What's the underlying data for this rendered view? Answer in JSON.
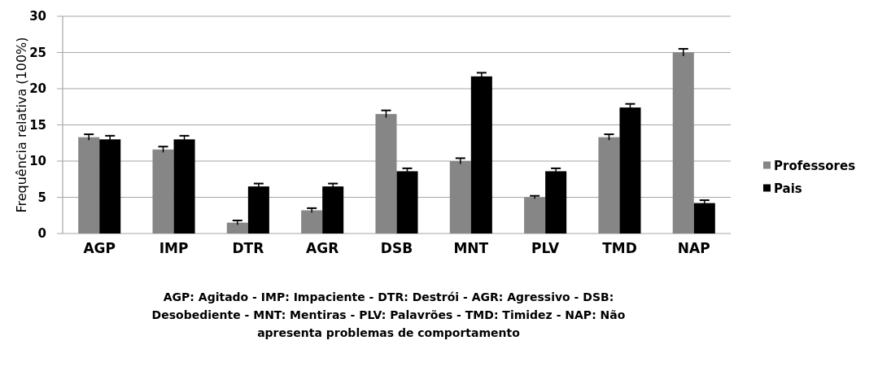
{
  "chart_data": {
    "type": "bar",
    "ylabel": "Frequência relativa (100%)",
    "categories": [
      "AGP",
      "IMP",
      "DTR",
      "AGR",
      "DSB",
      "MNT",
      "PLV",
      "TMD",
      "NAP"
    ],
    "series": [
      {
        "name": "Professores",
        "color": "#868686",
        "values": [
          13.3,
          11.6,
          1.5,
          3.2,
          16.5,
          10,
          5,
          13.3,
          25
        ],
        "errors": [
          0.4,
          0.4,
          0.3,
          0.3,
          0.5,
          0.4,
          0.2,
          0.4,
          0.5
        ]
      },
      {
        "name": "Pais",
        "color": "#000000",
        "values": [
          13,
          13,
          6.5,
          6.5,
          8.6,
          21.7,
          8.6,
          17.4,
          4.2
        ],
        "errors": [
          0.5,
          0.5,
          0.4,
          0.4,
          0.4,
          0.5,
          0.4,
          0.5,
          0.4
        ]
      }
    ],
    "ylim": [
      0,
      30
    ],
    "yticks": [
      0,
      5,
      10,
      15,
      20,
      25,
      30
    ],
    "grid": "y",
    "legend": "right",
    "annotations": [
      "AGP: Agitado - IMP: Impaciente - DTR: Destrói - AGR: Agressivo - DSB: Desobediente - MNT: Mentiras - PLV: Palavrões - TMD: Timidez - NAP: Não apresenta problemas de comportamento"
    ]
  }
}
